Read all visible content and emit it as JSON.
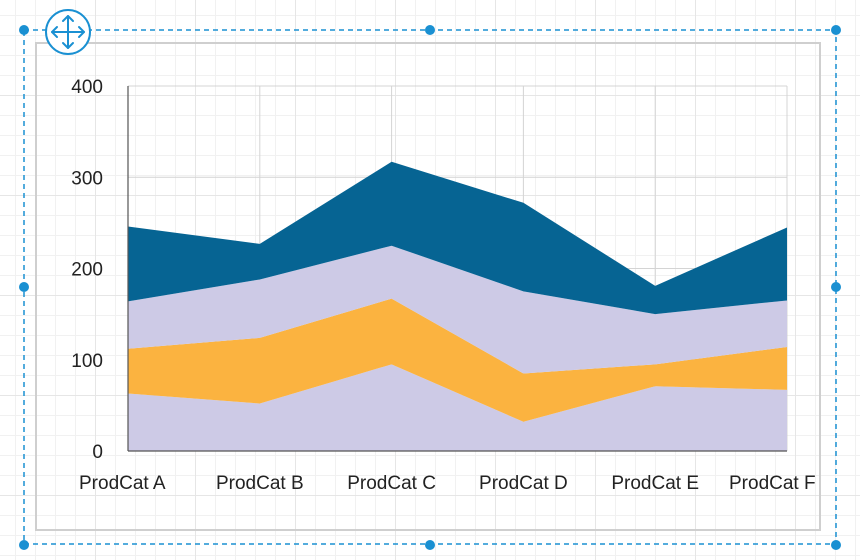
{
  "colors": {
    "selection": "#1a90d2",
    "series": [
      "#cdcae6",
      "#fbb340",
      "#cdcae6",
      "#066493"
    ]
  },
  "icons": {
    "move_handle": "move-arrows-icon"
  },
  "chart_data": {
    "type": "area",
    "stacked": true,
    "categories": [
      "ProdCat A",
      "ProdCat B",
      "ProdCat C",
      "ProdCat D",
      "ProdCat E",
      "ProdCat F"
    ],
    "series": [
      {
        "values": [
          63,
          52,
          95,
          32,
          71,
          67
        ]
      },
      {
        "values": [
          49,
          72,
          72,
          53,
          24,
          47
        ]
      },
      {
        "values": [
          52,
          64,
          58,
          90,
          55,
          51
        ]
      },
      {
        "values": [
          82,
          39,
          92,
          97,
          31,
          80
        ]
      }
    ],
    "ylim": [
      0,
      400
    ],
    "yticks": [
      0,
      100,
      200,
      300,
      400
    ],
    "grid": true,
    "legend": "none"
  }
}
